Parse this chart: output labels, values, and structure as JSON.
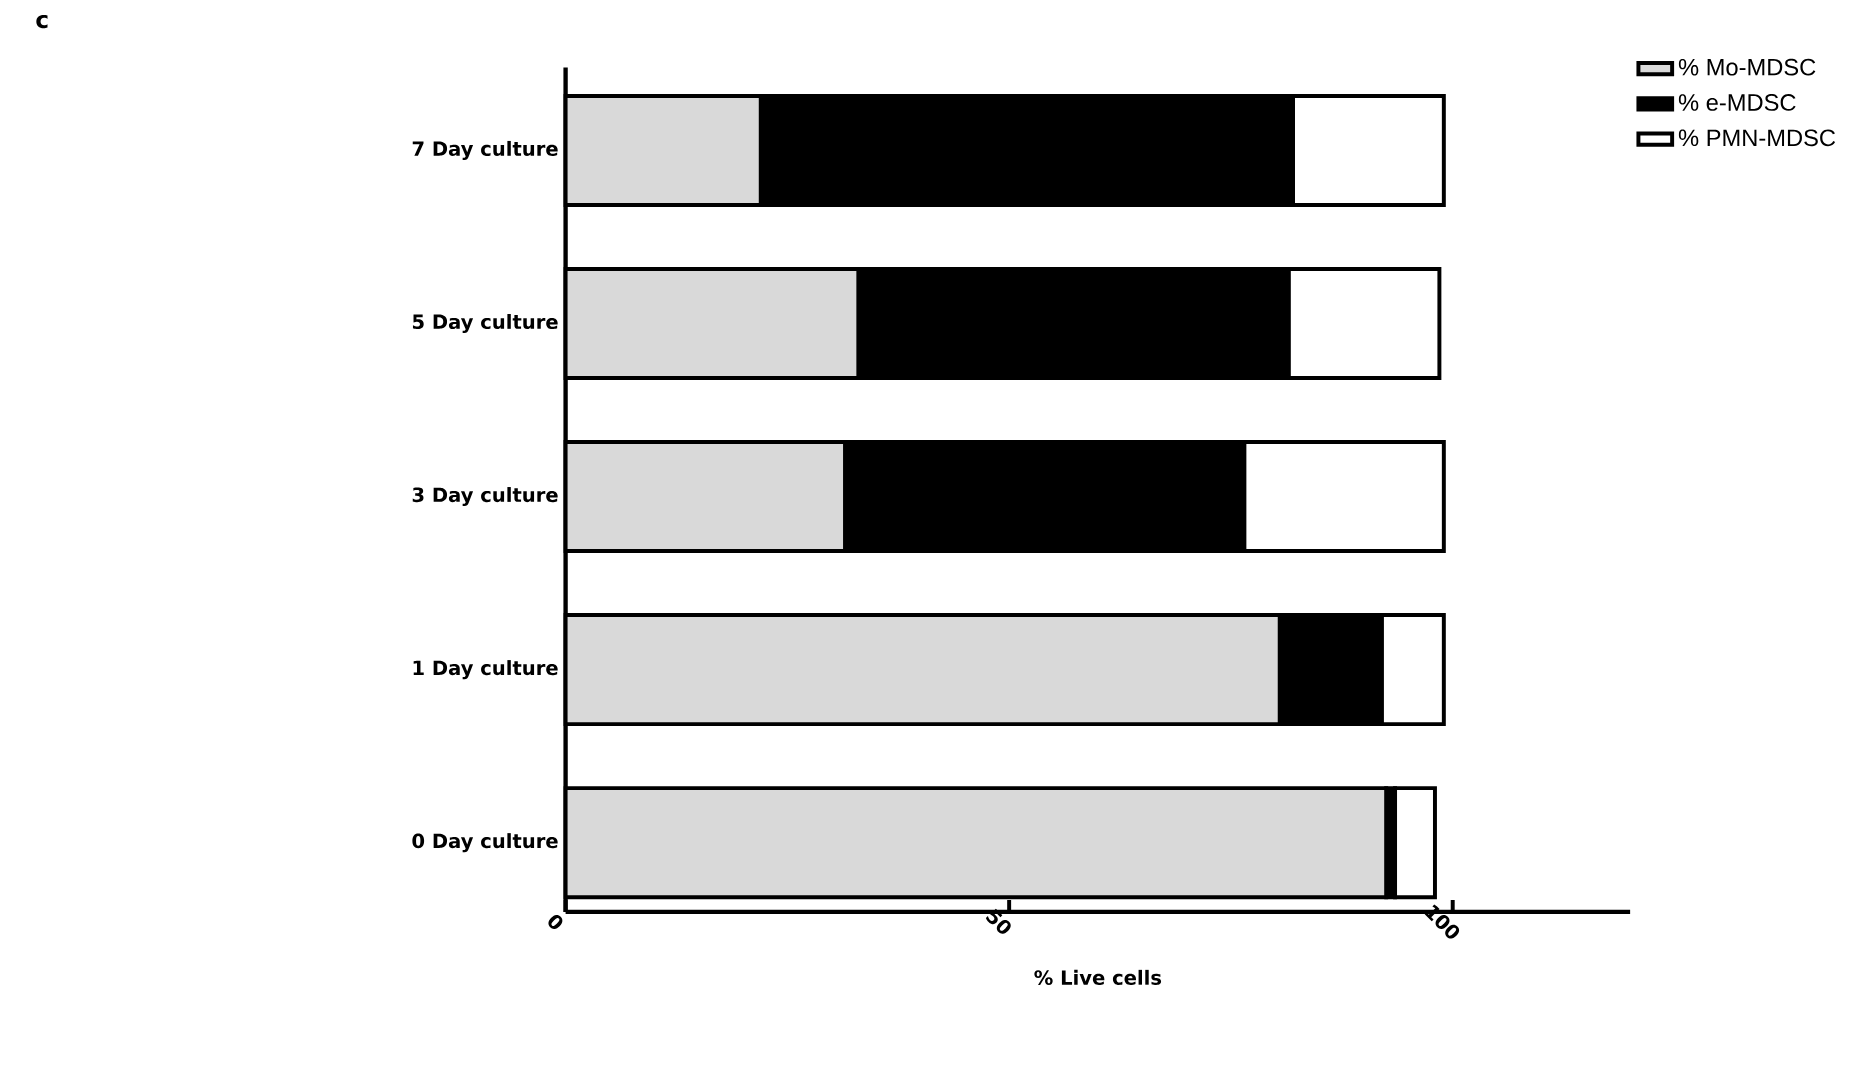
{
  "chart_data": {
    "type": "bar",
    "orientation": "horizontal",
    "stacked": true,
    "title": "c",
    "xlabel": "% Live cells",
    "categories": [
      "7 Day culture",
      "5 Day culture",
      "3 Day culture",
      "1 Day culture",
      "0 Day culture"
    ],
    "series": [
      {
        "name": "% Mo-MDSC",
        "color": "#d9d9d9",
        "values": [
          22,
          33,
          31.5,
          80.5,
          92.5
        ]
      },
      {
        "name": "% e-MDSC",
        "color": "#000000",
        "values": [
          60,
          48.5,
          45,
          11.5,
          1
        ]
      },
      {
        "name": "% PMN-MDSC",
        "color": "#ffffff",
        "values": [
          17,
          17,
          22.5,
          7,
          4.5
        ]
      }
    ],
    "xlim": [
      0,
      120
    ],
    "xticks": [
      0,
      50,
      100
    ],
    "legend": "top right",
    "grid": false
  }
}
